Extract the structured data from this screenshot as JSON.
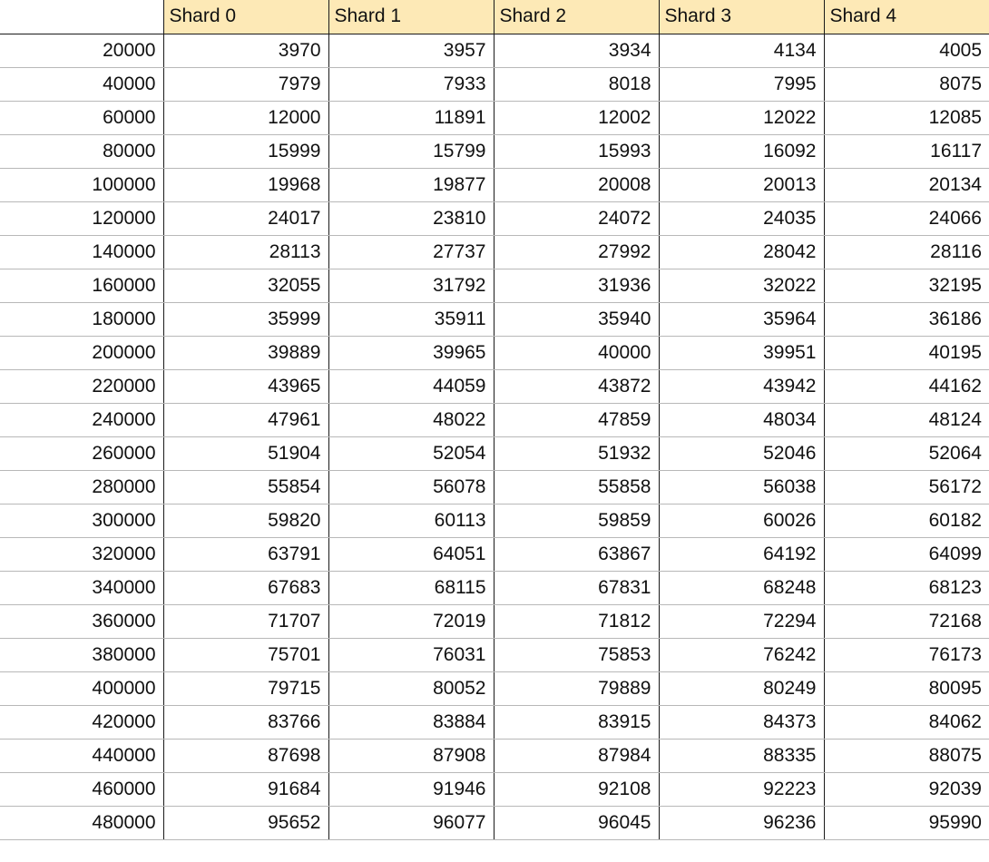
{
  "table": {
    "corner": "",
    "headers": [
      "Shard 0",
      "Shard 1",
      "Shard 2",
      "Shard 3",
      "Shard 4"
    ],
    "rows": [
      {
        "label": "20000",
        "values": [
          "3970",
          "3957",
          "3934",
          "4134",
          "4005"
        ]
      },
      {
        "label": "40000",
        "values": [
          "7979",
          "7933",
          "8018",
          "7995",
          "8075"
        ]
      },
      {
        "label": "60000",
        "values": [
          "12000",
          "11891",
          "12002",
          "12022",
          "12085"
        ]
      },
      {
        "label": "80000",
        "values": [
          "15999",
          "15799",
          "15993",
          "16092",
          "16117"
        ]
      },
      {
        "label": "100000",
        "values": [
          "19968",
          "19877",
          "20008",
          "20013",
          "20134"
        ]
      },
      {
        "label": "120000",
        "values": [
          "24017",
          "23810",
          "24072",
          "24035",
          "24066"
        ]
      },
      {
        "label": "140000",
        "values": [
          "28113",
          "27737",
          "27992",
          "28042",
          "28116"
        ]
      },
      {
        "label": "160000",
        "values": [
          "32055",
          "31792",
          "31936",
          "32022",
          "32195"
        ]
      },
      {
        "label": "180000",
        "values": [
          "35999",
          "35911",
          "35940",
          "35964",
          "36186"
        ]
      },
      {
        "label": "200000",
        "values": [
          "39889",
          "39965",
          "40000",
          "39951",
          "40195"
        ]
      },
      {
        "label": "220000",
        "values": [
          "43965",
          "44059",
          "43872",
          "43942",
          "44162"
        ]
      },
      {
        "label": "240000",
        "values": [
          "47961",
          "48022",
          "47859",
          "48034",
          "48124"
        ]
      },
      {
        "label": "260000",
        "values": [
          "51904",
          "52054",
          "51932",
          "52046",
          "52064"
        ]
      },
      {
        "label": "280000",
        "values": [
          "55854",
          "56078",
          "55858",
          "56038",
          "56172"
        ]
      },
      {
        "label": "300000",
        "values": [
          "59820",
          "60113",
          "59859",
          "60026",
          "60182"
        ]
      },
      {
        "label": "320000",
        "values": [
          "63791",
          "64051",
          "63867",
          "64192",
          "64099"
        ]
      },
      {
        "label": "340000",
        "values": [
          "67683",
          "68115",
          "67831",
          "68248",
          "68123"
        ]
      },
      {
        "label": "360000",
        "values": [
          "71707",
          "72019",
          "71812",
          "72294",
          "72168"
        ]
      },
      {
        "label": "380000",
        "values": [
          "75701",
          "76031",
          "75853",
          "76242",
          "76173"
        ]
      },
      {
        "label": "400000",
        "values": [
          "79715",
          "80052",
          "79889",
          "80249",
          "80095"
        ]
      },
      {
        "label": "420000",
        "values": [
          "83766",
          "83884",
          "83915",
          "84373",
          "84062"
        ]
      },
      {
        "label": "440000",
        "values": [
          "87698",
          "87908",
          "87984",
          "88335",
          "88075"
        ]
      },
      {
        "label": "460000",
        "values": [
          "91684",
          "91946",
          "92108",
          "92223",
          "92039"
        ]
      },
      {
        "label": "480000",
        "values": [
          "95652",
          "96077",
          "96045",
          "96236",
          "95990"
        ]
      }
    ]
  }
}
